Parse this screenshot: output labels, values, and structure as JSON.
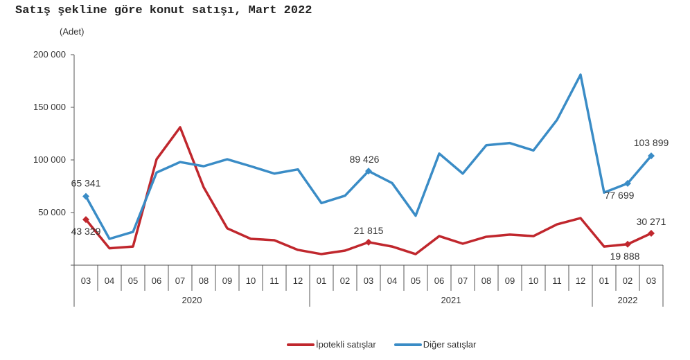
{
  "chart_data": {
    "type": "line",
    "title": "Satış şekline göre konut satışı, Mart 2022",
    "ylabel": "(Adet)",
    "ylim": [
      0,
      200000
    ],
    "yticks": [
      0,
      50000,
      100000,
      150000,
      200000
    ],
    "ytick_labels": [
      "",
      "50 000",
      "100 000",
      "150 000",
      "200 000"
    ],
    "months": [
      "03",
      "04",
      "05",
      "06",
      "07",
      "08",
      "09",
      "10",
      "11",
      "12",
      "01",
      "02",
      "03",
      "04",
      "05",
      "06",
      "07",
      "08",
      "09",
      "10",
      "11",
      "12",
      "01",
      "02",
      "03"
    ],
    "years": [
      {
        "label": "2020",
        "count": 10
      },
      {
        "label": "2021",
        "count": 12
      },
      {
        "label": "2022",
        "count": 3
      }
    ],
    "legend_position": "bottom",
    "series": [
      {
        "name": "İpotekli satışlar",
        "color": "#c0272d",
        "values": [
          43329,
          16000,
          17700,
          100600,
          131000,
          74000,
          35000,
          25000,
          23700,
          14500,
          10500,
          13800,
          21815,
          17700,
          10500,
          27600,
          20400,
          27000,
          29000,
          27600,
          38800,
          44700,
          17700,
          19888,
          30271
        ],
        "labels": [
          {
            "index": 0,
            "text": "43 329"
          },
          {
            "index": 12,
            "text": "21 815"
          },
          {
            "index": 23,
            "text": "19 888"
          },
          {
            "index": 24,
            "text": "30 271"
          }
        ]
      },
      {
        "name": "Diğer satışlar",
        "color": "#3a8cc6",
        "values": [
          65341,
          25000,
          31600,
          88000,
          98000,
          94000,
          100600,
          94000,
          87000,
          91000,
          59000,
          66000,
          89426,
          78000,
          47000,
          106000,
          87000,
          114000,
          116000,
          109000,
          138000,
          181000,
          69000,
          77699,
          103899
        ],
        "labels": [
          {
            "index": 0,
            "text": "65 341"
          },
          {
            "index": 12,
            "text": "89 426"
          },
          {
            "index": 23,
            "text": "77 699"
          },
          {
            "index": 24,
            "text": "103 899"
          }
        ]
      }
    ]
  }
}
